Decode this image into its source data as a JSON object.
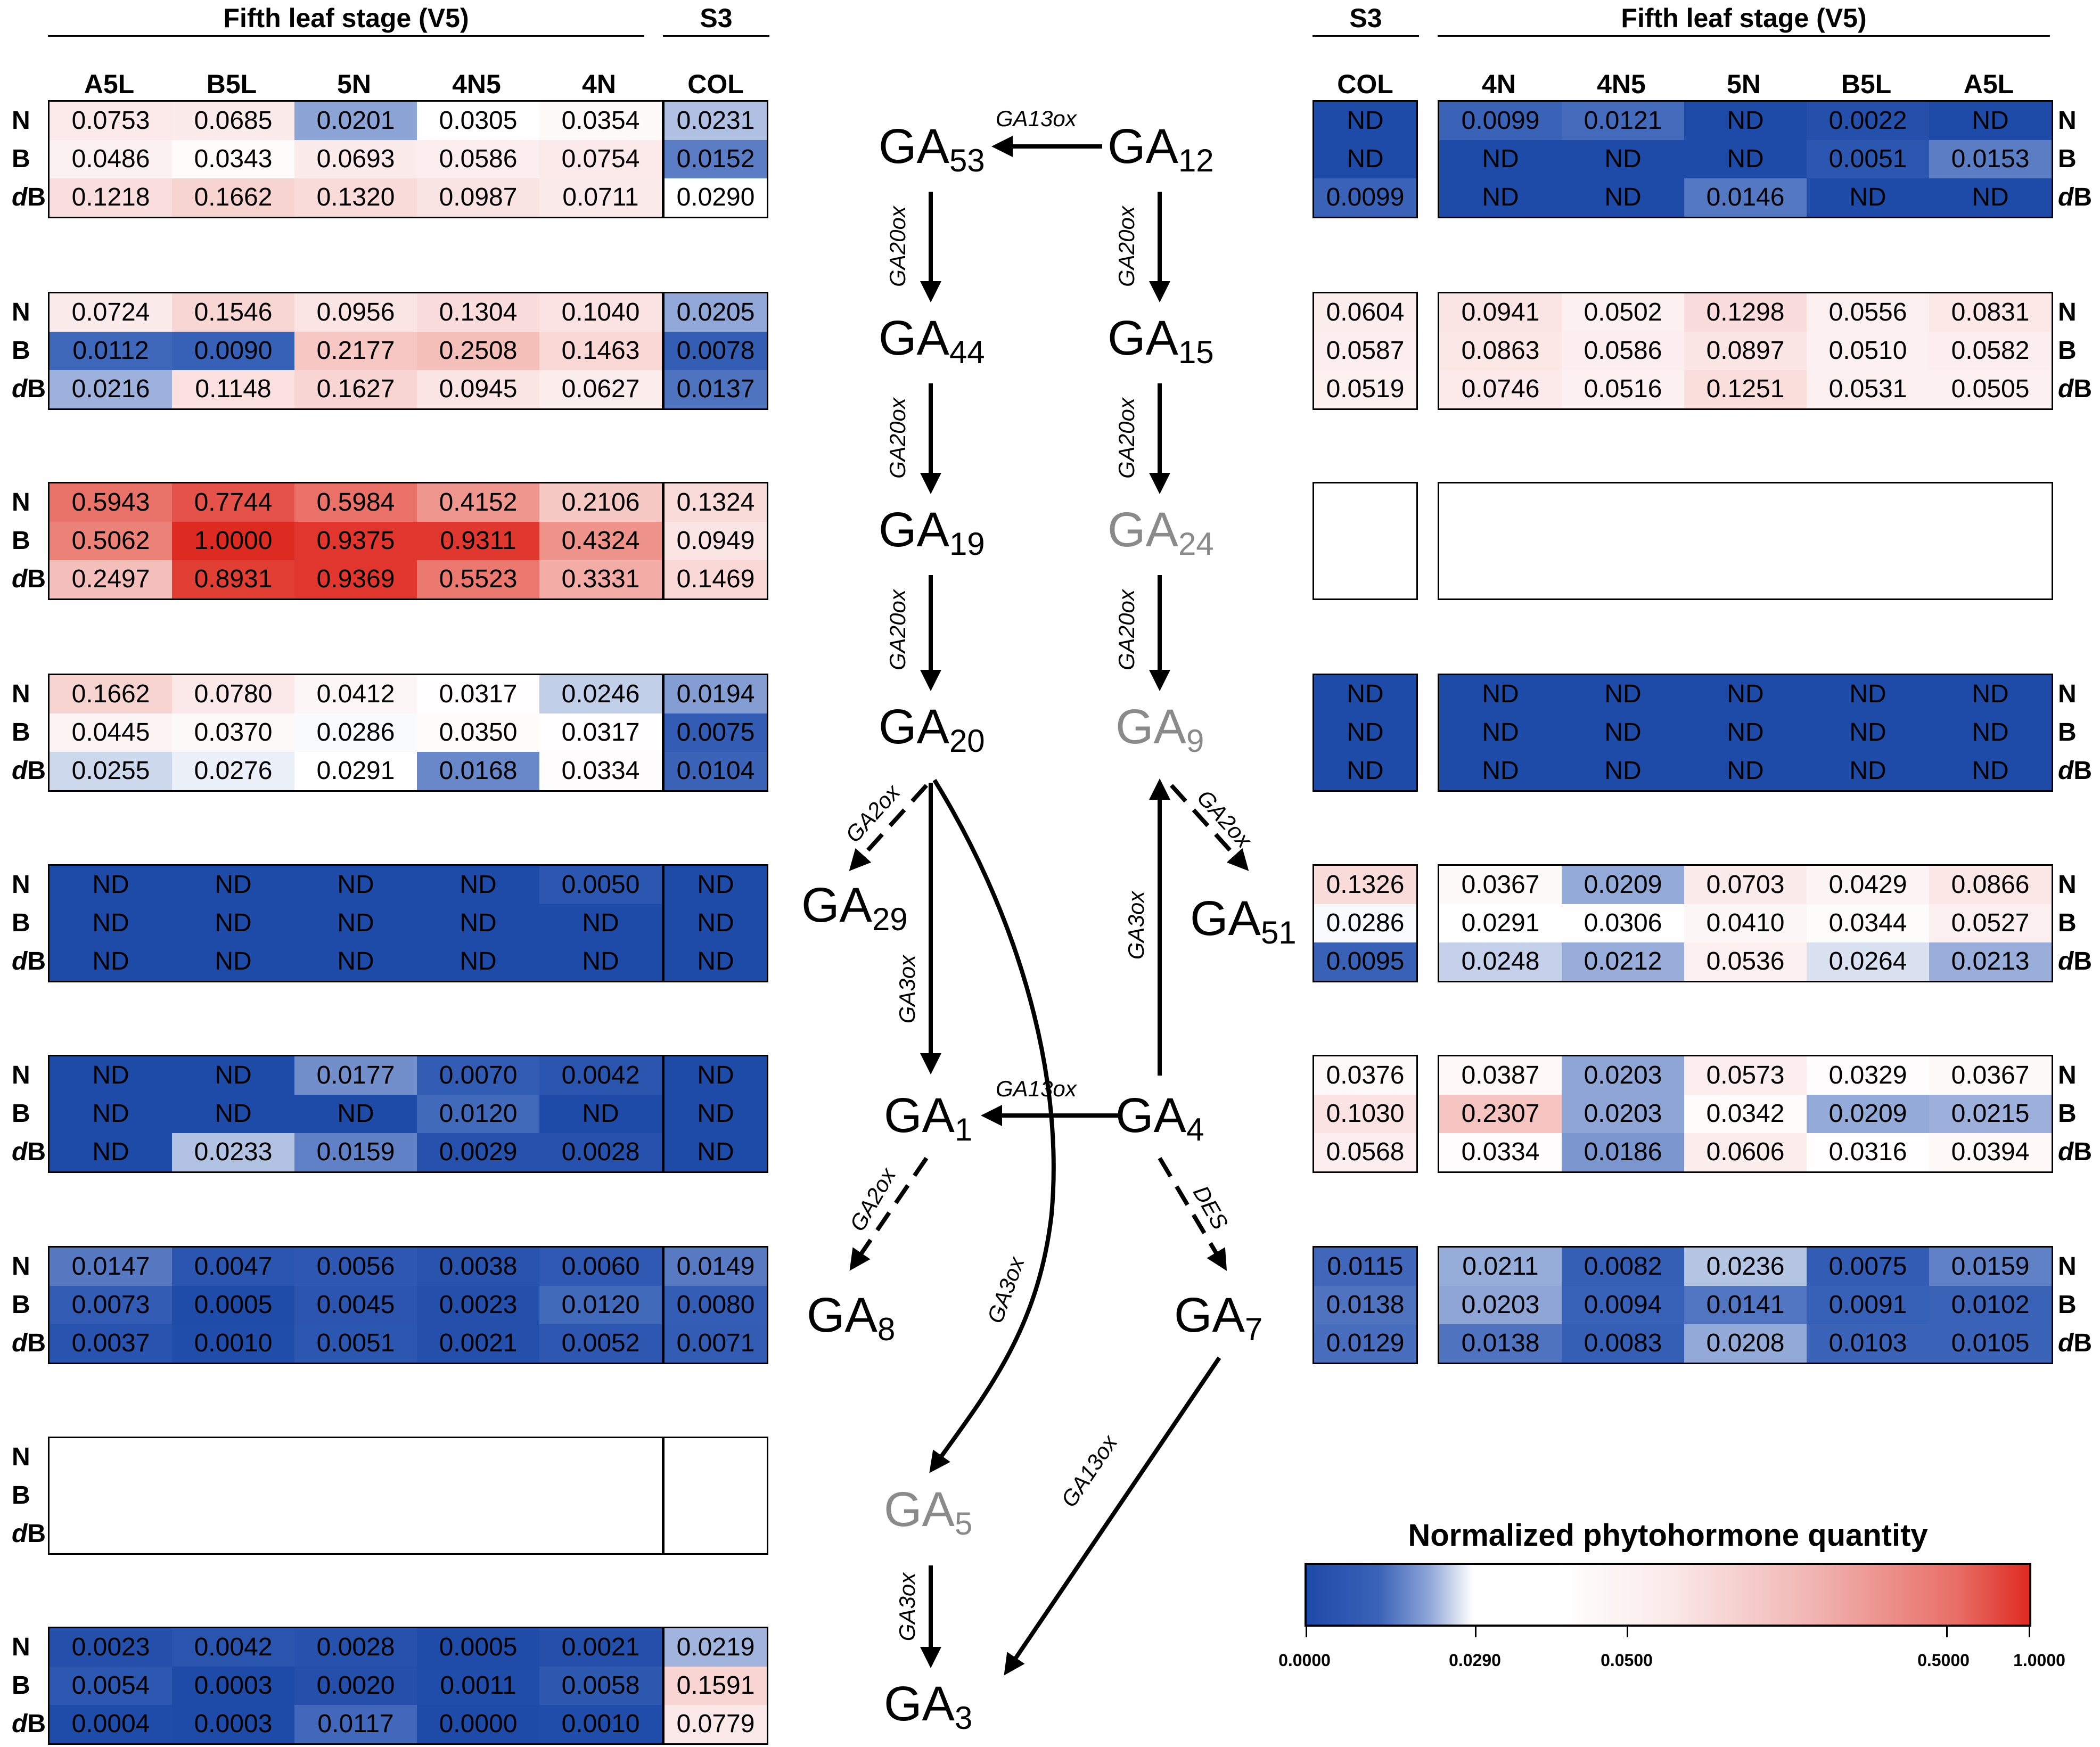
{
  "headers": {
    "v5": "Fifth leaf stage (V5)",
    "s3": "S3",
    "col": "COL",
    "left_cols": [
      "A5L",
      "B5L",
      "5N",
      "4N5",
      "4N"
    ],
    "right_cols": [
      "4N",
      "4N5",
      "5N",
      "B5L",
      "A5L"
    ],
    "row_labels": [
      "N",
      "B",
      "dB"
    ]
  },
  "colors": {
    "low": "#1e4aa8",
    "mid": "#ffffff",
    "high": "#de2b22"
  },
  "legend": {
    "title": "Normalized phytohormone quantity",
    "ticks": [
      "0.0000",
      "0.0290",
      "0.0500",
      "0.5000",
      "1.0000"
    ]
  },
  "nodes": [
    {
      "id": "GA53",
      "base": "GA",
      "sub": "53",
      "grey": false
    },
    {
      "id": "GA12",
      "base": "GA",
      "sub": "12",
      "grey": false
    },
    {
      "id": "GA44",
      "base": "GA",
      "sub": "44",
      "grey": false
    },
    {
      "id": "GA15",
      "base": "GA",
      "sub": "15",
      "grey": false
    },
    {
      "id": "GA19",
      "base": "GA",
      "sub": "19",
      "grey": false
    },
    {
      "id": "GA24",
      "base": "GA",
      "sub": "24",
      "grey": true
    },
    {
      "id": "GA20",
      "base": "GA",
      "sub": "20",
      "grey": false
    },
    {
      "id": "GA9",
      "base": "GA",
      "sub": "9",
      "grey": true
    },
    {
      "id": "GA29",
      "base": "GA",
      "sub": "29",
      "grey": false
    },
    {
      "id": "GA51",
      "base": "GA",
      "sub": "51",
      "grey": false
    },
    {
      "id": "GA1",
      "base": "GA",
      "sub": "1",
      "grey": false
    },
    {
      "id": "GA4",
      "base": "GA",
      "sub": "4",
      "grey": false
    },
    {
      "id": "GA8",
      "base": "GA",
      "sub": "8",
      "grey": false
    },
    {
      "id": "GA7",
      "base": "GA",
      "sub": "7",
      "grey": false
    },
    {
      "id": "GA5",
      "base": "GA",
      "sub": "5",
      "grey": true
    },
    {
      "id": "GA3",
      "base": "GA",
      "sub": "3",
      "grey": false
    }
  ],
  "enzymes": [
    {
      "id": "e1",
      "label": "GA13ox"
    },
    {
      "id": "e2",
      "label": "GA20ox"
    },
    {
      "id": "e3",
      "label": "GA20ox"
    },
    {
      "id": "e4",
      "label": "GA20ox"
    },
    {
      "id": "e5",
      "label": "GA20ox"
    },
    {
      "id": "e6",
      "label": "GA20ox"
    },
    {
      "id": "e7",
      "label": "GA20ox"
    },
    {
      "id": "e8",
      "label": "GA2ox"
    },
    {
      "id": "e9",
      "label": "GA2ox"
    },
    {
      "id": "e10",
      "label": "GA3ox"
    },
    {
      "id": "e11",
      "label": "GA3ox"
    },
    {
      "id": "e12",
      "label": "GA13ox"
    },
    {
      "id": "e13",
      "label": "GA2ox"
    },
    {
      "id": "e14",
      "label": "DES"
    },
    {
      "id": "e15",
      "label": "GA3ox"
    },
    {
      "id": "e16",
      "label": "GA13ox"
    },
    {
      "id": "e17",
      "label": "GA3ox"
    }
  ],
  "left_tables": [
    {
      "v5": [
        [
          "0.0753",
          "0.0685",
          "0.0201",
          "0.0305",
          "0.0354"
        ],
        [
          "0.0486",
          "0.0343",
          "0.0693",
          "0.0586",
          "0.0754"
        ],
        [
          "0.1218",
          "0.1662",
          "0.1320",
          "0.0987",
          "0.0711"
        ]
      ],
      "col": [
        "0.0231",
        "0.0152",
        "0.0290"
      ]
    },
    {
      "v5": [
        [
          "0.0724",
          "0.1546",
          "0.0956",
          "0.1304",
          "0.1040"
        ],
        [
          "0.0112",
          "0.0090",
          "0.2177",
          "0.2508",
          "0.1463"
        ],
        [
          "0.0216",
          "0.1148",
          "0.1627",
          "0.0945",
          "0.0627"
        ]
      ],
      "col": [
        "0.0205",
        "0.0078",
        "0.0137"
      ]
    },
    {
      "v5": [
        [
          "0.5943",
          "0.7744",
          "0.5984",
          "0.4152",
          "0.2106"
        ],
        [
          "0.5062",
          "1.0000",
          "0.9375",
          "0.9311",
          "0.4324"
        ],
        [
          "0.2497",
          "0.8931",
          "0.9369",
          "0.5523",
          "0.3331"
        ]
      ],
      "col": [
        "0.1324",
        "0.0949",
        "0.1469"
      ]
    },
    {
      "v5": [
        [
          "0.1662",
          "0.0780",
          "0.0412",
          "0.0317",
          "0.0246"
        ],
        [
          "0.0445",
          "0.0370",
          "0.0286",
          "0.0350",
          "0.0317"
        ],
        [
          "0.0255",
          "0.0276",
          "0.0291",
          "0.0168",
          "0.0334"
        ]
      ],
      "col": [
        "0.0194",
        "0.0075",
        "0.0104"
      ]
    },
    {
      "v5": [
        [
          "ND",
          "ND",
          "ND",
          "ND",
          "0.0050"
        ],
        [
          "ND",
          "ND",
          "ND",
          "ND",
          "ND"
        ],
        [
          "ND",
          "ND",
          "ND",
          "ND",
          "ND"
        ]
      ],
      "col": [
        "ND",
        "ND",
        "ND"
      ]
    },
    {
      "v5": [
        [
          "ND",
          "ND",
          "0.0177",
          "0.0070",
          "0.0042"
        ],
        [
          "ND",
          "ND",
          "ND",
          "0.0120",
          "ND"
        ],
        [
          "ND",
          "0.0233",
          "0.0159",
          "0.0029",
          "0.0028"
        ]
      ],
      "col": [
        "ND",
        "ND",
        "ND"
      ]
    },
    {
      "v5": [
        [
          "0.0147",
          "0.0047",
          "0.0056",
          "0.0038",
          "0.0060"
        ],
        [
          "0.0073",
          "0.0005",
          "0.0045",
          "0.0023",
          "0.0120"
        ],
        [
          "0.0037",
          "0.0010",
          "0.0051",
          "0.0021",
          "0.0052"
        ]
      ],
      "col": [
        "0.0149",
        "0.0080",
        "0.0071"
      ]
    },
    {
      "v5": null,
      "col": null
    },
    {
      "v5": [
        [
          "0.0023",
          "0.0042",
          "0.0028",
          "0.0005",
          "0.0021"
        ],
        [
          "0.0054",
          "0.0003",
          "0.0020",
          "0.0011",
          "0.0058"
        ],
        [
          "0.0004",
          "0.0003",
          "0.0117",
          "0.0000",
          "0.0010"
        ]
      ],
      "col": [
        "0.0219",
        "0.1591",
        "0.0779"
      ]
    }
  ],
  "right_tables": [
    {
      "col": [
        "ND",
        "ND",
        "0.0099"
      ],
      "v5": [
        [
          "0.0099",
          "0.0121",
          "ND",
          "0.0022",
          "ND"
        ],
        [
          "ND",
          "ND",
          "ND",
          "0.0051",
          "0.0153"
        ],
        [
          "ND",
          "ND",
          "0.0146",
          "ND",
          "ND"
        ]
      ]
    },
    {
      "col": [
        "0.0604",
        "0.0587",
        "0.0519"
      ],
      "v5": [
        [
          "0.0941",
          "0.0502",
          "0.1298",
          "0.0556",
          "0.0831"
        ],
        [
          "0.0863",
          "0.0586",
          "0.0897",
          "0.0510",
          "0.0582"
        ],
        [
          "0.0746",
          "0.0516",
          "0.1251",
          "0.0531",
          "0.0505"
        ]
      ]
    },
    {
      "col": null,
      "v5": null
    },
    {
      "col": [
        "ND",
        "ND",
        "ND"
      ],
      "v5": [
        [
          "ND",
          "ND",
          "ND",
          "ND",
          "ND"
        ],
        [
          "ND",
          "ND",
          "ND",
          "ND",
          "ND"
        ],
        [
          "ND",
          "ND",
          "ND",
          "ND",
          "ND"
        ]
      ]
    },
    {
      "col": [
        "0.1326",
        "0.0286",
        "0.0095"
      ],
      "v5": [
        [
          "0.0367",
          "0.0209",
          "0.0703",
          "0.0429",
          "0.0866"
        ],
        [
          "0.0291",
          "0.0306",
          "0.0410",
          "0.0344",
          "0.0527"
        ],
        [
          "0.0248",
          "0.0212",
          "0.0536",
          "0.0264",
          "0.0213"
        ]
      ]
    },
    {
      "col": [
        "0.0376",
        "0.1030",
        "0.0568"
      ],
      "v5": [
        [
          "0.0387",
          "0.0203",
          "0.0573",
          "0.0329",
          "0.0367"
        ],
        [
          "0.2307",
          "0.0203",
          "0.0342",
          "0.0209",
          "0.0215"
        ],
        [
          "0.0334",
          "0.0186",
          "0.0606",
          "0.0316",
          "0.0394"
        ]
      ]
    },
    {
      "col": [
        "0.0115",
        "0.0138",
        "0.0129"
      ],
      "v5": [
        [
          "0.0211",
          "0.0082",
          "0.0236",
          "0.0075",
          "0.0159"
        ],
        [
          "0.0203",
          "0.0094",
          "0.0141",
          "0.0091",
          "0.0102"
        ],
        [
          "0.0138",
          "0.0083",
          "0.0208",
          "0.0103",
          "0.0105"
        ]
      ]
    }
  ]
}
